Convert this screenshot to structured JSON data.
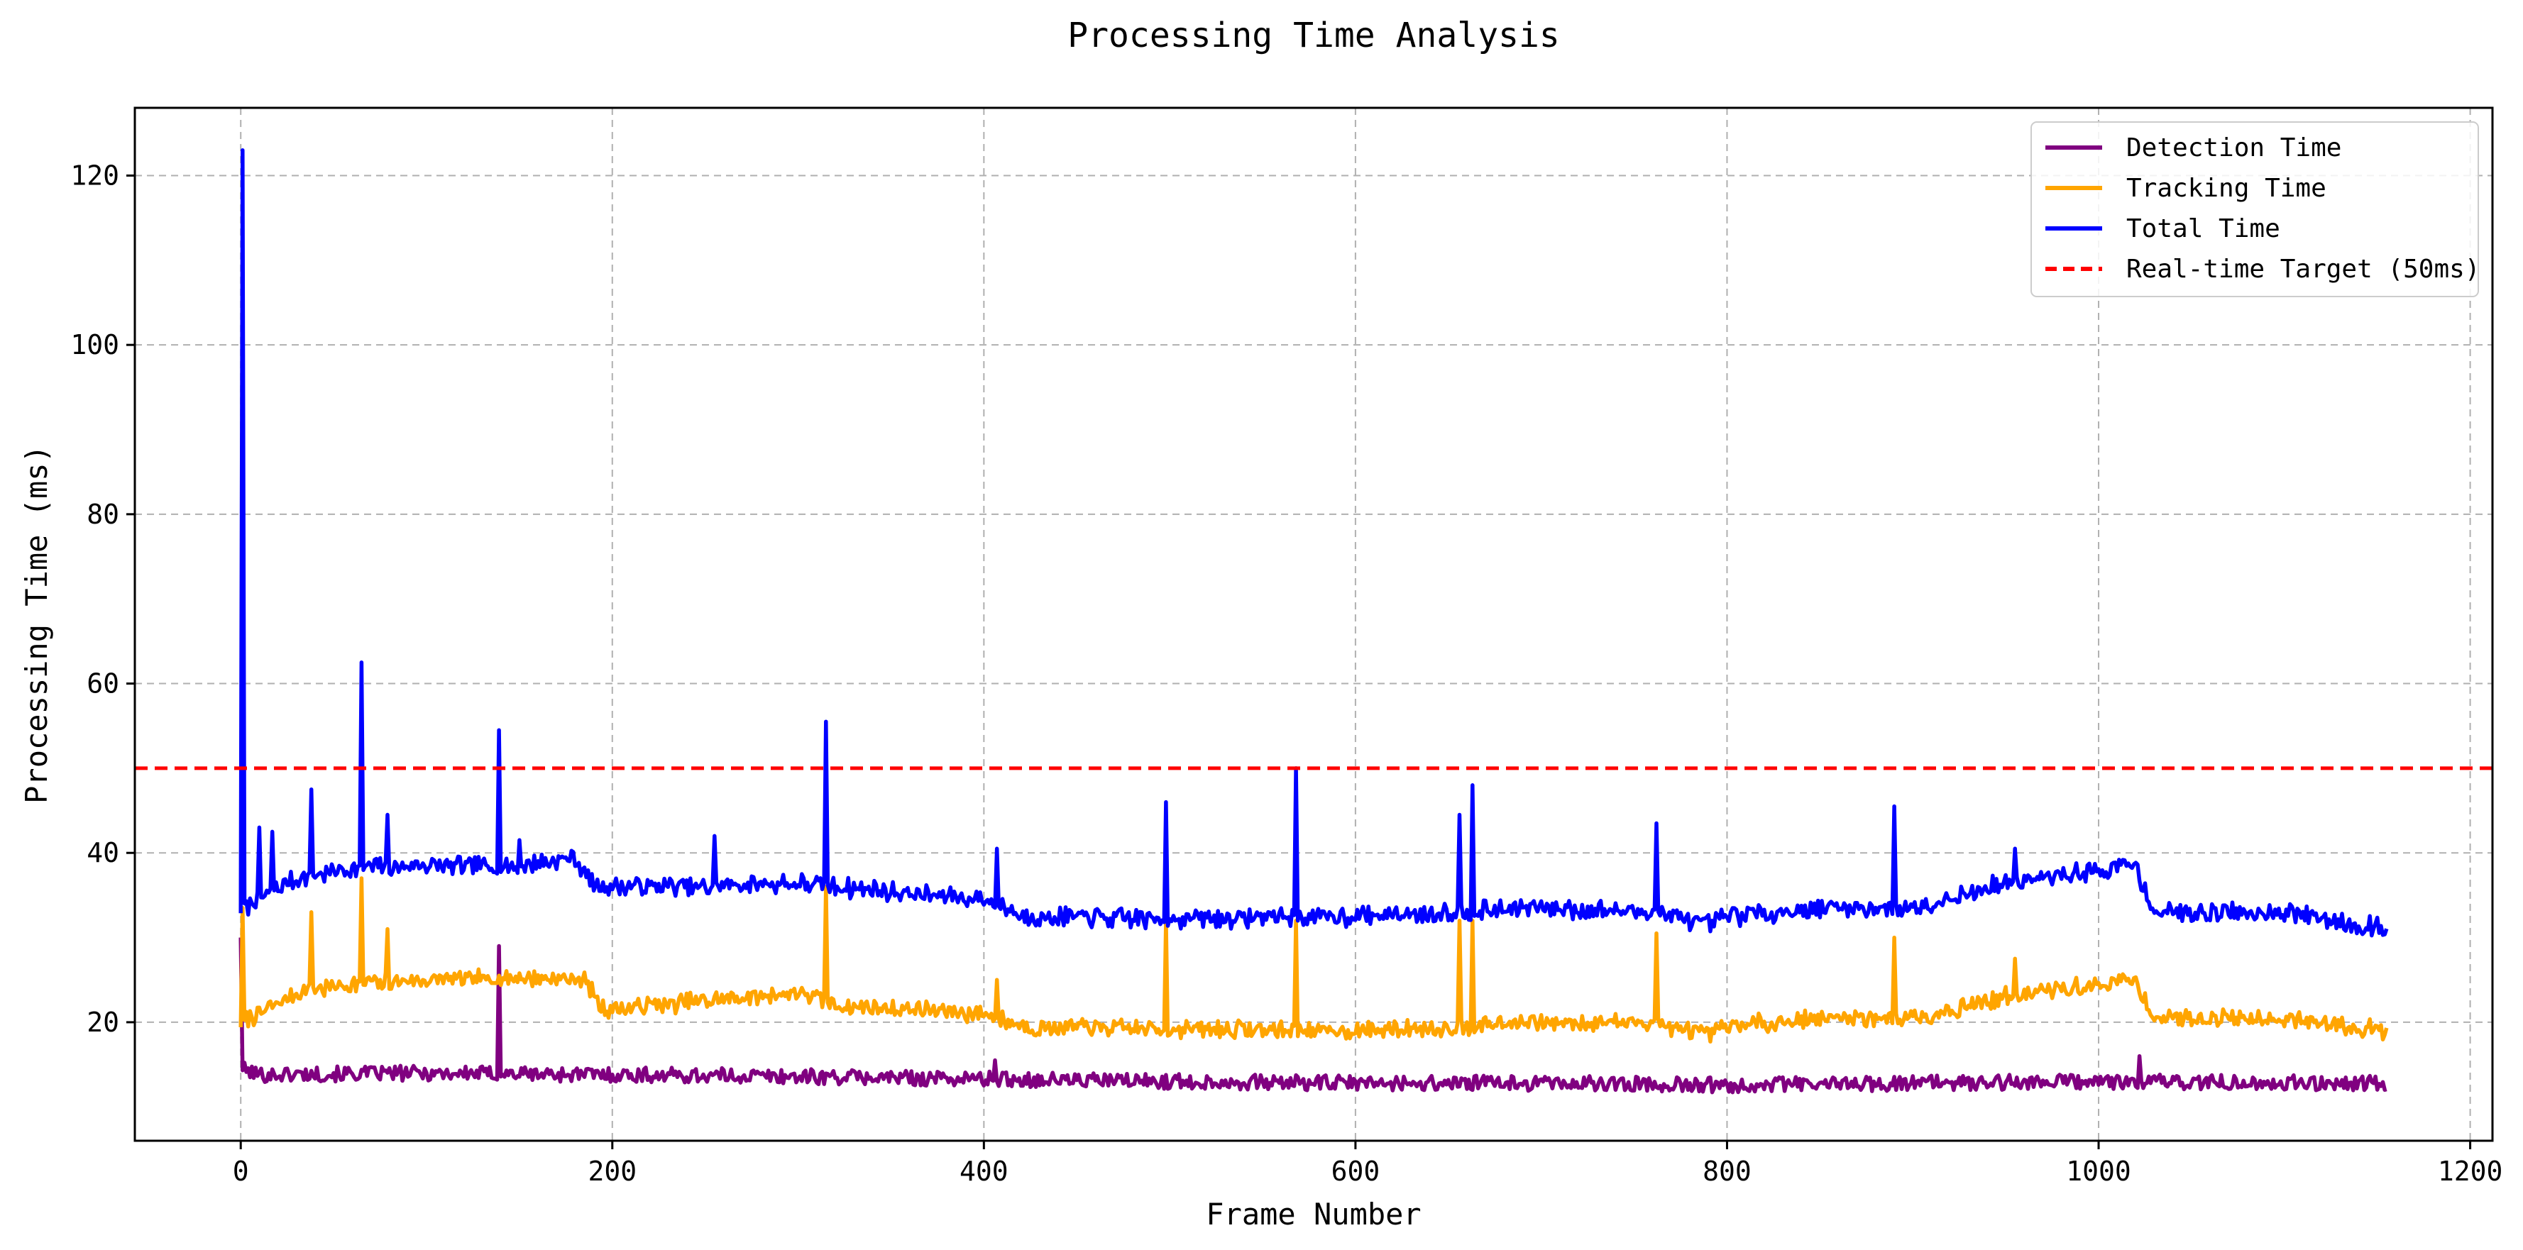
{
  "chart_data": {
    "type": "line",
    "title": "Processing Time Analysis",
    "xlabel": "Frame Number",
    "ylabel": "Processing Time (ms)",
    "xlim": [
      -57,
      1212
    ],
    "ylim": [
      6,
      128
    ],
    "xticks": [
      0,
      200,
      400,
      600,
      800,
      1000,
      1200
    ],
    "yticks": [
      20,
      40,
      60,
      80,
      100,
      120
    ],
    "grid": true,
    "legend_position": "upper right",
    "frames": 1156,
    "series": [
      {
        "name": "Detection Time",
        "color": "#800080",
        "baseline": [
          [
            0,
            14.5
          ],
          [
            10,
            13.8
          ],
          [
            100,
            14.0
          ],
          [
            200,
            13.8
          ],
          [
            300,
            13.6
          ],
          [
            400,
            13.3
          ],
          [
            500,
            13.0
          ],
          [
            600,
            12.8
          ],
          [
            700,
            12.8
          ],
          [
            800,
            12.6
          ],
          [
            900,
            12.8
          ],
          [
            1000,
            13.0
          ],
          [
            1155,
            12.8
          ]
        ],
        "peaks": [
          [
            0,
            30.0
          ],
          [
            139,
            29.0
          ],
          [
            406,
            15.5
          ],
          [
            1022,
            16.0
          ]
        ]
      },
      {
        "name": "Tracking Time",
        "color": "#FFA500",
        "baseline": [
          [
            0,
            20.0
          ],
          [
            10,
            21.0
          ],
          [
            30,
            23.5
          ],
          [
            60,
            24.5
          ],
          [
            100,
            25.0
          ],
          [
            150,
            25.2
          ],
          [
            185,
            25.0
          ],
          [
            195,
            21.5
          ],
          [
            250,
            22.5
          ],
          [
            300,
            23.5
          ],
          [
            320,
            22.0
          ],
          [
            400,
            21.0
          ],
          [
            420,
            19.5
          ],
          [
            500,
            19.2
          ],
          [
            600,
            19.0
          ],
          [
            700,
            20.0
          ],
          [
            760,
            20.0
          ],
          [
            790,
            18.5
          ],
          [
            800,
            19.5
          ],
          [
            850,
            20.5
          ],
          [
            900,
            20.5
          ],
          [
            950,
            23.0
          ],
          [
            1020,
            25.0
          ],
          [
            1030,
            20.5
          ],
          [
            1100,
            20.5
          ],
          [
            1155,
            19.0
          ]
        ],
        "peaks": [
          [
            1,
            33.5
          ],
          [
            4,
            19.5
          ],
          [
            38,
            33.0
          ],
          [
            65,
            37.0
          ],
          [
            79,
            31.0
          ],
          [
            315,
            36.0
          ],
          [
            407,
            25.0
          ],
          [
            498,
            32.0
          ],
          [
            568,
            32.0
          ],
          [
            656,
            32.0
          ],
          [
            663,
            32.0
          ],
          [
            762,
            30.5
          ],
          [
            890,
            30.0
          ],
          [
            955,
            27.5
          ]
        ]
      },
      {
        "name": "Total Time",
        "color": "#0000FF",
        "baseline": [
          [
            0,
            33.5
          ],
          [
            10,
            34.5
          ],
          [
            30,
            37.0
          ],
          [
            60,
            38.2
          ],
          [
            100,
            38.5
          ],
          [
            150,
            38.5
          ],
          [
            180,
            39.5
          ],
          [
            190,
            36.0
          ],
          [
            250,
            36.0
          ],
          [
            300,
            36.5
          ],
          [
            320,
            36.0
          ],
          [
            400,
            34.5
          ],
          [
            420,
            32.5
          ],
          [
            500,
            32.2
          ],
          [
            600,
            32.5
          ],
          [
            700,
            33.5
          ],
          [
            760,
            33.0
          ],
          [
            790,
            31.5
          ],
          [
            800,
            32.5
          ],
          [
            850,
            33.5
          ],
          [
            900,
            33.5
          ],
          [
            950,
            36.5
          ],
          [
            1020,
            38.5
          ],
          [
            1030,
            33.0
          ],
          [
            1100,
            33.0
          ],
          [
            1155,
            31.0
          ]
        ],
        "peaks": [
          [
            1,
            123.0
          ],
          [
            10,
            43.0
          ],
          [
            17,
            42.5
          ],
          [
            38,
            47.5
          ],
          [
            65,
            62.5
          ],
          [
            79,
            44.5
          ],
          [
            139,
            54.5
          ],
          [
            150,
            41.5
          ],
          [
            255,
            42.0
          ],
          [
            315,
            55.5
          ],
          [
            407,
            40.5
          ],
          [
            498,
            46.0
          ],
          [
            568,
            50.0
          ],
          [
            656,
            44.5
          ],
          [
            663,
            48.0
          ],
          [
            762,
            43.5
          ],
          [
            890,
            45.5
          ],
          [
            955,
            40.5
          ]
        ]
      },
      {
        "name": "Real-time Target (50ms)",
        "color": "#FF0000",
        "style": "dashed",
        "y": 50
      }
    ]
  }
}
